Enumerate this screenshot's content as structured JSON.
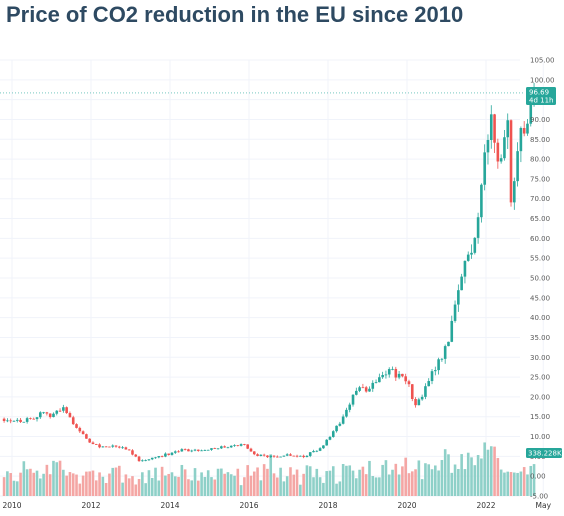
{
  "title": "Price of CO2 reduction in the EU since 2010",
  "colors": {
    "up": "#26a69a",
    "down": "#ef5350",
    "vol_up": "#8ed0c8",
    "vol_down": "#f4a6a4",
    "title": "#2e4a62"
  },
  "price_tag": {
    "price": "96.69",
    "countdown": "4d 11h"
  },
  "volume_tag": "338.228K",
  "chart_data": {
    "type": "candlestick",
    "title": "Price of CO2 reduction in the EU since 2010",
    "ylim": [
      -5,
      105
    ],
    "y_ticks": [
      "-5.00",
      "0.00",
      "5.00",
      "10.00",
      "15.00",
      "20.00",
      "25.00",
      "30.00",
      "35.00",
      "40.00",
      "45.00",
      "50.00",
      "55.00",
      "60.00",
      "65.00",
      "70.00",
      "75.00",
      "80.00",
      "85.00",
      "90.00",
      "95.00",
      "100.00",
      "105.00"
    ],
    "x_ticks": [
      "2010",
      "2012",
      "2014",
      "2016",
      "2018",
      "2020",
      "2022",
      "May"
    ],
    "x_range": [
      2009.75,
      2023.5
    ],
    "grid": true,
    "last_price": 96.69,
    "anchors": [
      [
        2009.8,
        14.5
      ],
      [
        2010.3,
        14
      ],
      [
        2010.7,
        15.5
      ],
      [
        2011.0,
        15.5
      ],
      [
        2011.3,
        17
      ],
      [
        2011.6,
        13
      ],
      [
        2011.9,
        9
      ],
      [
        2012.2,
        7.5
      ],
      [
        2012.6,
        7.5
      ],
      [
        2012.9,
        7.0
      ],
      [
        2013.2,
        4
      ],
      [
        2013.5,
        4.5
      ],
      [
        2013.9,
        5.5
      ],
      [
        2014.3,
        6.5
      ],
      [
        2014.7,
        6.5
      ],
      [
        2015.0,
        7
      ],
      [
        2015.5,
        7.5
      ],
      [
        2015.9,
        8
      ],
      [
        2016.1,
        5.5
      ],
      [
        2016.4,
        5.0
      ],
      [
        2016.7,
        5.0
      ],
      [
        2017.0,
        5.5
      ],
      [
        2017.4,
        5
      ],
      [
        2017.7,
        6.5
      ],
      [
        2017.9,
        8
      ],
      [
        2018.1,
        10.5
      ],
      [
        2018.4,
        15
      ],
      [
        2018.6,
        20
      ],
      [
        2018.8,
        22
      ],
      [
        2019.0,
        22
      ],
      [
        2019.3,
        25.5
      ],
      [
        2019.6,
        27
      ],
      [
        2019.8,
        25
      ],
      [
        2020.0,
        24
      ],
      [
        2020.2,
        18
      ],
      [
        2020.4,
        20
      ],
      [
        2020.6,
        26
      ],
      [
        2020.8,
        29
      ],
      [
        2021.0,
        33
      ],
      [
        2021.2,
        41
      ],
      [
        2021.4,
        52
      ],
      [
        2021.6,
        57
      ],
      [
        2021.75,
        61
      ],
      [
        2021.85,
        72
      ],
      [
        2022.0,
        85
      ],
      [
        2022.15,
        89
      ],
      [
        2022.25,
        80
      ],
      [
        2022.4,
        84
      ],
      [
        2022.55,
        90
      ],
      [
        2022.65,
        66
      ],
      [
        2022.75,
        75
      ],
      [
        2022.85,
        85
      ],
      [
        2023.0,
        83
      ],
      [
        2023.1,
        90
      ],
      [
        2023.18,
        96.69
      ]
    ]
  }
}
